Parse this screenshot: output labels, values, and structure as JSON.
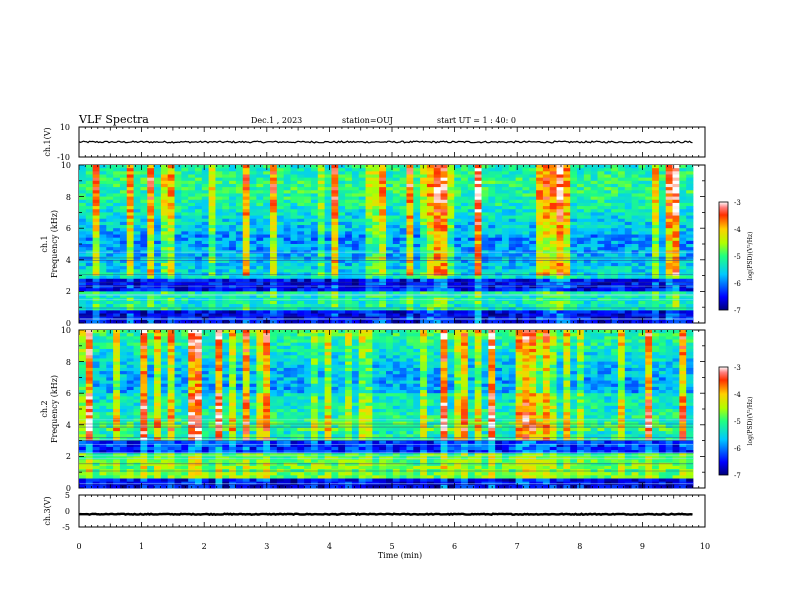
{
  "header": {
    "title": "VLF Spectra",
    "date": "Dec.1 , 2023",
    "station": "station=OUJ",
    "start": "start UT = 1 : 40: 0"
  },
  "colors": {
    "spectrogram_low": "#000080",
    "spectrogram_mid": "#00e0ff",
    "spectrogram_high": "#ff0000",
    "trace": "#000000"
  },
  "chart_data": [
    {
      "type": "line",
      "panel": "ch1-waveform",
      "ylabel": "ch.1(V)",
      "ylim": [
        -10,
        10
      ],
      "yticks": [
        "10",
        "-10"
      ],
      "xlim": [
        0,
        10
      ],
      "description_value": "nearly flat trace around 0 V with small noise",
      "series": [
        {
          "y_center": 0,
          "y_noise": 0.6
        }
      ]
    },
    {
      "type": "heatmap",
      "panel": "ch1-spectrogram",
      "ylabel_channel": "ch.1",
      "ylabel": "Frequency (kHz)",
      "ylim": [
        0,
        10
      ],
      "yticks": [
        "0",
        "2",
        "4",
        "6",
        "8",
        "10"
      ],
      "xlim": [
        0,
        10
      ],
      "colorbar": {
        "label": "log(PSD)(V²/Hz)",
        "range": [
          -7,
          -3
        ],
        "ticks": [
          "-3",
          "-4",
          "-5",
          "-6",
          "-7"
        ]
      }
    },
    {
      "type": "heatmap",
      "panel": "ch2-spectrogram",
      "ylabel_channel": "ch.2",
      "ylabel": "Frequency (kHz)",
      "ylim": [
        0,
        10
      ],
      "yticks": [
        "0",
        "2",
        "4",
        "6",
        "8",
        "10"
      ],
      "xlim": [
        0,
        10
      ],
      "colorbar": {
        "label": "log(PSD)(V²/Hz)",
        "range": [
          -7,
          -3
        ],
        "ticks": [
          "-3",
          "-4",
          "-5",
          "-6",
          "-7"
        ]
      }
    },
    {
      "type": "line",
      "panel": "ch3-waveform",
      "ylabel": "ch.3(V)",
      "ylim": [
        -5,
        5
      ],
      "yticks": [
        "5",
        "0",
        "-5"
      ],
      "xlim": [
        0,
        10
      ],
      "series": [
        {
          "y_center": -1,
          "y_noise": 0.15
        }
      ]
    }
  ],
  "xaxis": {
    "label": "Time (min)",
    "ticks": [
      "0",
      "1",
      "2",
      "3",
      "4",
      "5",
      "6",
      "7",
      "8",
      "9",
      "10"
    ]
  }
}
